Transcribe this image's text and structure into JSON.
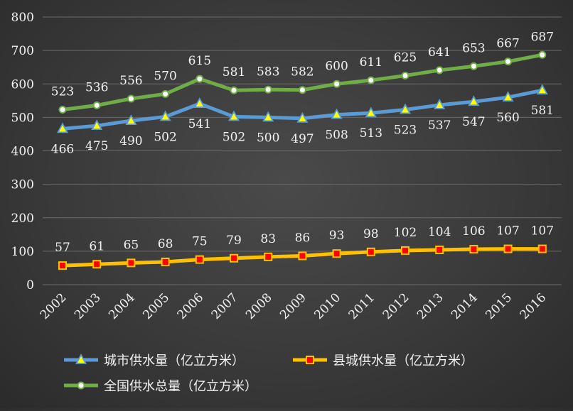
{
  "chart_data": {
    "type": "line",
    "title": "",
    "xlabel": "",
    "ylabel": "",
    "ylim": [
      0,
      800
    ],
    "yticks": [
      0,
      100,
      200,
      300,
      400,
      500,
      600,
      700,
      800
    ],
    "grid": true,
    "legend_position": "bottom",
    "x": [
      "2002",
      "2003",
      "2004",
      "2005",
      "2006",
      "2007",
      "2008",
      "2009",
      "2010",
      "2011",
      "2012",
      "2013",
      "2014",
      "2015",
      "2016"
    ],
    "series": [
      {
        "name": "城市供水量（亿立方米）",
        "color": "#5b9bd5",
        "marker": "triangle",
        "marker_color": "#ffff00",
        "label_position": "below",
        "values": [
          466,
          475,
          490,
          502,
          541,
          502,
          500,
          497,
          508,
          513,
          523,
          537,
          547,
          560,
          581
        ]
      },
      {
        "name": "县城供水量（亿立方米）",
        "color": "#ffc000",
        "marker": "square",
        "marker_color": "#ff0000",
        "label_position": "above",
        "values": [
          57,
          61,
          65,
          68,
          75,
          79,
          83,
          86,
          93,
          98,
          102,
          104,
          106,
          107,
          107
        ]
      },
      {
        "name": "全国供水总量（亿立方米）",
        "color": "#70ad47",
        "marker": "circle",
        "marker_color": "#ffffff",
        "label_position": "above",
        "values": [
          523,
          536,
          556,
          570,
          615,
          581,
          583,
          582,
          600,
          611,
          625,
          641,
          653,
          667,
          687
        ]
      }
    ]
  }
}
